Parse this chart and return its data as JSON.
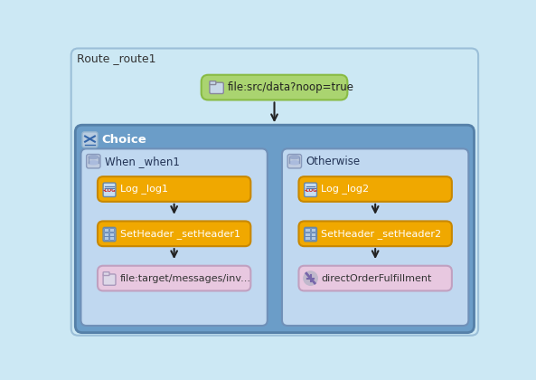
{
  "title": "Route _route1",
  "bg_color": "#cce8f4",
  "outer_border_color": "#9bbfd8",
  "choice_bg": "#6b9dc8",
  "choice_border": "#5580a8",
  "choice_label": "Choice",
  "when_label": "When _when1",
  "otherwise_label": "Otherwise",
  "sub_bg": "#c0d8f0",
  "sub_border": "#7090b8",
  "source_label": "file:src/data?noop=true",
  "source_color": "#aad470",
  "source_border": "#88bb44",
  "orange_color": "#f0a800",
  "orange_border": "#c88800",
  "pink_color": "#e8c8e0",
  "pink_border": "#c0a0c0",
  "when_nodes": [
    "Log _log1",
    "SetHeader _setHeader1",
    "file:target/messages/inv..."
  ],
  "otherwise_nodes": [
    "Log _log2",
    "SetHeader _setHeader2",
    "directOrderFulfillment"
  ],
  "node_types": [
    "log",
    "setheader",
    "file"
  ],
  "text_dark": "#222222",
  "text_white": "#ffffff",
  "text_blue_dark": "#223355"
}
